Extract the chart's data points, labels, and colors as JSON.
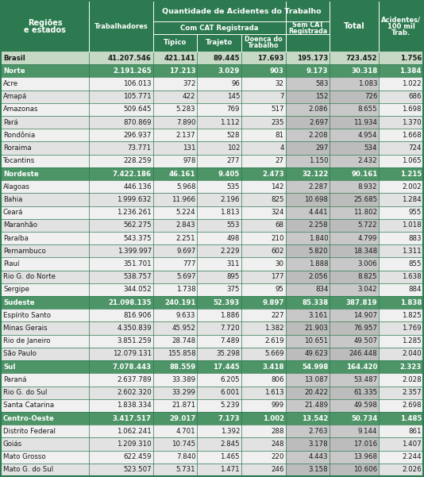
{
  "header_bg": "#2d7a50",
  "header_text": "#ffffff",
  "region_bg": "#4d9467",
  "border_color": "#2d7a50",
  "brasil_bg": "#c5d9c5",
  "brasil_text": "#1a1a1a",
  "state_bg_even": "#f0f0f0",
  "state_bg_odd": "#e2e2e2",
  "shade_bg_even": "#c8c8c8",
  "shade_bg_odd": "#bcbcbc",
  "col_widths_rel": [
    18,
    13,
    9,
    9,
    9,
    9,
    10,
    9
  ],
  "rows": [
    {
      "name": "Brasil",
      "type": "brasil",
      "vals": [
        "41.207.546",
        "421.141",
        "89.445",
        "17.693",
        "195.173",
        "723.452",
        "1.756"
      ]
    },
    {
      "name": "Norte",
      "type": "region",
      "vals": [
        "2.191.265",
        "17.213",
        "3.029",
        "903",
        "9.173",
        "30.318",
        "1.384"
      ]
    },
    {
      "name": "Acre",
      "type": "state",
      "vals": [
        "106.013",
        "372",
        "96",
        "32",
        "583",
        "1.083",
        "1.022"
      ]
    },
    {
      "name": "Amapá",
      "type": "state",
      "vals": [
        "105.771",
        "422",
        "145",
        "7",
        "152",
        "726",
        "686"
      ]
    },
    {
      "name": "Amazonas",
      "type": "state",
      "vals": [
        "509.645",
        "5.283",
        "769",
        "517",
        "2.086",
        "8.655",
        "1.698"
      ]
    },
    {
      "name": "Pará",
      "type": "state",
      "vals": [
        "870.869",
        "7.890",
        "1.112",
        "235",
        "2.697",
        "11.934",
        "1.370"
      ]
    },
    {
      "name": "Rondônia",
      "type": "state",
      "vals": [
        "296.937",
        "2.137",
        "528",
        "81",
        "2.208",
        "4.954",
        "1.668"
      ]
    },
    {
      "name": "Roraima",
      "type": "state",
      "vals": [
        "73.771",
        "131",
        "102",
        "4",
        "297",
        "534",
        "724"
      ]
    },
    {
      "name": "Tocantins",
      "type": "state",
      "vals": [
        "228.259",
        "978",
        "277",
        "27",
        "1.150",
        "2.432",
        "1.065"
      ]
    },
    {
      "name": "Nordeste",
      "type": "region",
      "vals": [
        "7.422.186",
        "46.161",
        "9.405",
        "2.473",
        "32.122",
        "90.161",
        "1.215"
      ]
    },
    {
      "name": "Alagoas",
      "type": "state",
      "vals": [
        "446.136",
        "5.968",
        "535",
        "142",
        "2.287",
        "8.932",
        "2.002"
      ]
    },
    {
      "name": "Bahia",
      "type": "state",
      "vals": [
        "1.999.632",
        "11.966",
        "2.196",
        "825",
        "10.698",
        "25.685",
        "1.284"
      ]
    },
    {
      "name": "Ceará",
      "type": "state",
      "vals": [
        "1.236.261",
        "5.224",
        "1.813",
        "324",
        "4.441",
        "11.802",
        "955"
      ]
    },
    {
      "name": "Maranhão",
      "type": "state",
      "vals": [
        "562.275",
        "2.843",
        "553",
        "68",
        "2.258",
        "5.722",
        "1.018"
      ]
    },
    {
      "name": "Paraíba",
      "type": "state",
      "vals": [
        "543.375",
        "2.251",
        "498",
        "210",
        "1.840",
        "4.799",
        "883"
      ]
    },
    {
      "name": "Pernambuco",
      "type": "state",
      "vals": [
        "1.399.997",
        "9.697",
        "2.229",
        "602",
        "5.820",
        "18.348",
        "1.311"
      ]
    },
    {
      "name": "Piauí",
      "type": "state",
      "vals": [
        "351.701",
        "777",
        "311",
        "30",
        "1.888",
        "3.006",
        "855"
      ]
    },
    {
      "name": "Rio G. do Norte",
      "type": "state",
      "vals": [
        "538.757",
        "5.697",
        "895",
        "177",
        "2.056",
        "8.825",
        "1.638"
      ]
    },
    {
      "name": "Sergipe",
      "type": "state",
      "vals": [
        "344.052",
        "1.738",
        "375",
        "95",
        "834",
        "3.042",
        "884"
      ]
    },
    {
      "name": "Sudeste",
      "type": "region",
      "vals": [
        "21.098.135",
        "240.191",
        "52.393",
        "9.897",
        "85.338",
        "387.819",
        "1.838"
      ]
    },
    {
      "name": "Espírito Santo",
      "type": "state",
      "vals": [
        "816.906",
        "9.633",
        "1.886",
        "227",
        "3.161",
        "14.907",
        "1.825"
      ]
    },
    {
      "name": "Minas Gerais",
      "type": "state",
      "vals": [
        "4.350.839",
        "45.952",
        "7.720",
        "1.382",
        "21.903",
        "76.957",
        "1.769"
      ]
    },
    {
      "name": "Rio de Janeiro",
      "type": "state",
      "vals": [
        "3.851.259",
        "28.748",
        "7.489",
        "2.619",
        "10.651",
        "49.507",
        "1.285"
      ]
    },
    {
      "name": "São Paulo",
      "type": "state",
      "vals": [
        "12.079.131",
        "155.858",
        "35.298",
        "5.669",
        "49.623",
        "246.448",
        "2.040"
      ]
    },
    {
      "name": "Sul",
      "type": "region",
      "vals": [
        "7.078.443",
        "88.559",
        "17.445",
        "3.418",
        "54.998",
        "164.420",
        "2.323"
      ]
    },
    {
      "name": "Paraná",
      "type": "state",
      "vals": [
        "2.637.789",
        "33.389",
        "6.205",
        "806",
        "13.087",
        "53.487",
        "2.028"
      ]
    },
    {
      "name": "Rio G. do Sul",
      "type": "state",
      "vals": [
        "2.602.320",
        "33.299",
        "6.001",
        "1.613",
        "20.422",
        "61.335",
        "2.357"
      ]
    },
    {
      "name": "Santa Catarina",
      "type": "state",
      "vals": [
        "1.838.334",
        "21.871",
        "5.239",
        "999",
        "21.489",
        "49.598",
        "2.698"
      ]
    },
    {
      "name": "Centro-Oeste",
      "type": "region",
      "vals": [
        "3.417.517",
        "29.017",
        "7.173",
        "1.002",
        "13.542",
        "50.734",
        "1.485"
      ]
    },
    {
      "name": "Distrito Federal",
      "type": "state",
      "vals": [
        "1.062.241",
        "4.701",
        "1.392",
        "288",
        "2.763",
        "9.144",
        "861"
      ]
    },
    {
      "name": "Goiás",
      "type": "state",
      "vals": [
        "1.209.310",
        "10.745",
        "2.845",
        "248",
        "3.178",
        "17.016",
        "1.407"
      ]
    },
    {
      "name": "Mato Grosso",
      "type": "state",
      "vals": [
        "622.459",
        "7.840",
        "1.465",
        "220",
        "4.443",
        "13.968",
        "2.244"
      ]
    },
    {
      "name": "Mato G. do Sul",
      "type": "state",
      "vals": [
        "523.507",
        "5.731",
        "1.471",
        "246",
        "3.158",
        "10.606",
        "2.026"
      ]
    }
  ]
}
